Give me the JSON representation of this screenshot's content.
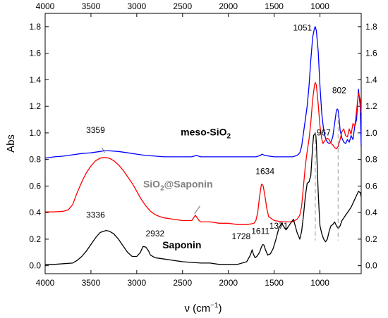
{
  "chart_data": {
    "type": "line",
    "title": "",
    "xlabel": "ν (cm",
    "xlabel_sup": "−1",
    "xlabel_end": ")",
    "ylabel": "Abs",
    "xlim": [
      4000,
      550
    ],
    "ylim": [
      -0.06,
      1.9
    ],
    "x_reversed": true,
    "grid": false,
    "x_ticks": [
      {
        "value": 4000,
        "label": "4000"
      },
      {
        "value": 3500,
        "label": "3500"
      },
      {
        "value": 3000,
        "label": "3000"
      },
      {
        "value": 2500,
        "label": "2500"
      },
      {
        "value": 2000,
        "label": "2000"
      },
      {
        "value": 1500,
        "label": "1500"
      },
      {
        "value": 1000,
        "label": "1000"
      }
    ],
    "y_ticks": [
      {
        "value": 0.0,
        "label": "0.0"
      },
      {
        "value": 0.2,
        "label": "0.2"
      },
      {
        "value": 0.4,
        "label": "0.4"
      },
      {
        "value": 0.6,
        "label": "0.6"
      },
      {
        "value": 0.8,
        "label": "0.8"
      },
      {
        "value": 1.0,
        "label": "1.0"
      },
      {
        "value": 1.2,
        "label": "1.2"
      },
      {
        "value": 1.4,
        "label": "1.4"
      },
      {
        "value": 1.6,
        "label": "1.6"
      },
      {
        "value": 1.8,
        "label": "1.8"
      }
    ],
    "series": [
      {
        "key": "meso",
        "color": "#0000ff",
        "label_parts": [
          "meso-SiO",
          "2",
          ""
        ],
        "label_color": "#000000",
        "label_pos": {
          "x": 2520,
          "y": 0.98
        },
        "x": [
          4000,
          3900,
          3800,
          3700,
          3600,
          3500,
          3400,
          3359,
          3300,
          3200,
          3100,
          3000,
          2900,
          2800,
          2700,
          2600,
          2500,
          2400,
          2350,
          2300,
          2200,
          2100,
          2000,
          1900,
          1800,
          1700,
          1650,
          1634,
          1600,
          1500,
          1400,
          1300,
          1250,
          1220,
          1200,
          1180,
          1160,
          1140,
          1120,
          1100,
          1080,
          1060,
          1051,
          1040,
          1020,
          1000,
          980,
          960,
          940,
          920,
          900,
          880,
          860,
          840,
          820,
          810,
          802,
          790,
          780,
          760,
          740,
          720,
          700,
          680,
          660,
          640,
          620,
          600,
          580,
          560,
          550
        ],
        "y": [
          0.81,
          0.82,
          0.825,
          0.835,
          0.845,
          0.85,
          0.86,
          0.865,
          0.865,
          0.86,
          0.85,
          0.84,
          0.83,
          0.825,
          0.82,
          0.82,
          0.82,
          0.82,
          0.83,
          0.82,
          0.82,
          0.82,
          0.82,
          0.82,
          0.82,
          0.82,
          0.83,
          0.84,
          0.83,
          0.82,
          0.82,
          0.82,
          0.83,
          0.85,
          0.9,
          1.0,
          1.1,
          1.2,
          1.35,
          1.55,
          1.72,
          1.79,
          1.8,
          1.77,
          1.62,
          1.35,
          1.14,
          1.02,
          0.96,
          0.93,
          0.92,
          0.93,
          0.97,
          1.07,
          1.17,
          1.18,
          1.17,
          1.1,
          1.02,
          0.96,
          0.93,
          0.92,
          0.95,
          0.93,
          0.98,
          0.95,
          1.05,
          1.1,
          1.33,
          1.2,
          0.9
        ]
      },
      {
        "key": "sio2sap",
        "color": "#ff0000",
        "label_parts": [
          "SiO",
          "2",
          "@Saponin"
        ],
        "label_color": "#808080",
        "label_pos": {
          "x": 2930,
          "y": 0.59
        },
        "x": [
          4000,
          3900,
          3800,
          3750,
          3700,
          3650,
          3600,
          3550,
          3500,
          3450,
          3400,
          3359,
          3300,
          3250,
          3200,
          3150,
          3100,
          3050,
          3000,
          2950,
          2900,
          2850,
          2800,
          2750,
          2700,
          2600,
          2500,
          2400,
          2360,
          2340,
          2320,
          2300,
          2200,
          2100,
          2000,
          1900,
          1800,
          1750,
          1720,
          1700,
          1680,
          1660,
          1640,
          1634,
          1620,
          1600,
          1580,
          1560,
          1500,
          1400,
          1300,
          1250,
          1220,
          1200,
          1180,
          1160,
          1140,
          1120,
          1100,
          1080,
          1060,
          1051,
          1040,
          1020,
          1000,
          980,
          967,
          950,
          920,
          900,
          880,
          860,
          840,
          820,
          800,
          780,
          760,
          740,
          720,
          700,
          680,
          660,
          640,
          620,
          600,
          580,
          560,
          550
        ],
        "y": [
          0.405,
          0.405,
          0.41,
          0.42,
          0.46,
          0.55,
          0.63,
          0.7,
          0.75,
          0.79,
          0.81,
          0.815,
          0.81,
          0.79,
          0.76,
          0.72,
          0.67,
          0.62,
          0.56,
          0.5,
          0.45,
          0.41,
          0.385,
          0.37,
          0.36,
          0.35,
          0.34,
          0.34,
          0.38,
          0.36,
          0.34,
          0.33,
          0.33,
          0.32,
          0.32,
          0.31,
          0.31,
          0.315,
          0.32,
          0.34,
          0.4,
          0.52,
          0.61,
          0.615,
          0.6,
          0.52,
          0.43,
          0.37,
          0.34,
          0.33,
          0.33,
          0.35,
          0.38,
          0.45,
          0.6,
          0.75,
          0.86,
          0.95,
          1.08,
          1.25,
          1.36,
          1.38,
          1.36,
          1.22,
          1.05,
          0.95,
          0.92,
          0.94,
          0.96,
          0.95,
          0.92,
          0.91,
          0.89,
          0.88,
          0.9,
          0.95,
          1.01,
          1.03,
          0.98,
          0.97,
          1.03,
          0.99,
          1.07,
          1.05,
          1.17,
          1.3,
          1.25,
          1.15
        ]
      },
      {
        "key": "saponin",
        "color": "#000000",
        "label_parts": [
          "Saponin",
          "",
          ""
        ],
        "label_color": "#000000",
        "label_pos": {
          "x": 2720,
          "y": 0.13
        },
        "x": [
          4000,
          3900,
          3800,
          3700,
          3650,
          3600,
          3550,
          3500,
          3450,
          3400,
          3336,
          3300,
          3250,
          3200,
          3150,
          3100,
          3050,
          3000,
          2960,
          2932,
          2900,
          2870,
          2850,
          2800,
          2700,
          2600,
          2500,
          2400,
          2300,
          2200,
          2100,
          2000,
          1900,
          1800,
          1760,
          1740,
          1728,
          1710,
          1690,
          1660,
          1640,
          1625,
          1611,
          1595,
          1570,
          1540,
          1510,
          1480,
          1450,
          1420,
          1400,
          1371,
          1340,
          1310,
          1290,
          1270,
          1250,
          1220,
          1200,
          1180,
          1160,
          1140,
          1120,
          1100,
          1080,
          1070,
          1060,
          1051,
          1045,
          1040,
          1030,
          1020,
          1010,
          1000,
          980,
          960,
          940,
          920,
          900,
          880,
          860,
          840,
          820,
          800,
          780,
          760,
          740,
          720,
          700,
          680,
          660,
          640,
          620,
          600,
          580,
          560,
          550
        ],
        "y": [
          0.01,
          0.01,
          0.015,
          0.02,
          0.04,
          0.07,
          0.11,
          0.16,
          0.21,
          0.25,
          0.265,
          0.26,
          0.24,
          0.2,
          0.15,
          0.1,
          0.07,
          0.07,
          0.1,
          0.145,
          0.14,
          0.11,
          0.08,
          0.06,
          0.05,
          0.04,
          0.03,
          0.025,
          0.02,
          0.02,
          0.01,
          0.01,
          0.01,
          0.03,
          0.08,
          0.12,
          0.09,
          0.06,
          0.07,
          0.1,
          0.14,
          0.16,
          0.155,
          0.12,
          0.08,
          0.09,
          0.13,
          0.2,
          0.28,
          0.32,
          0.3,
          0.27,
          0.3,
          0.33,
          0.35,
          0.3,
          0.25,
          0.2,
          0.26,
          0.38,
          0.52,
          0.62,
          0.63,
          0.68,
          0.9,
          0.98,
          0.99,
          1.0,
          0.98,
          0.93,
          0.75,
          0.56,
          0.42,
          0.3,
          0.24,
          0.2,
          0.18,
          0.2,
          0.26,
          0.3,
          0.31,
          0.33,
          0.3,
          0.28,
          0.3,
          0.34,
          0.36,
          0.38,
          0.4,
          0.42,
          0.44,
          0.47,
          0.5,
          0.53,
          0.56,
          0.55,
          0.52
        ]
      }
    ],
    "peak_labels": [
      {
        "text": "3359",
        "x": 3450,
        "y": 1.0
      },
      {
        "text": "3336",
        "x": 3450,
        "y": 0.36
      },
      {
        "text": "2932",
        "x": 2800,
        "y": 0.22
      },
      {
        "text": "1634",
        "x": 1600,
        "y": 0.69
      },
      {
        "text": "1728",
        "x": 1860,
        "y": 0.2
      },
      {
        "text": "1611",
        "x": 1650,
        "y": 0.24
      },
      {
        "text": "1371",
        "x": 1450,
        "y": 0.28
      },
      {
        "text": "1051",
        "x": 1190,
        "y": 1.77
      },
      {
        "text": "967",
        "x": 960,
        "y": 0.98
      },
      {
        "text": "802",
        "x": 790,
        "y": 1.3
      }
    ],
    "leader_lines": [
      {
        "x1": 3380,
        "y1": 0.89,
        "x2": 3350,
        "y2": 0.85
      },
      {
        "x1": 2370,
        "y1": 0.39,
        "x2": 2310,
        "y2": 0.45
      }
    ],
    "dashed_markers": [
      {
        "x": 1051,
        "y_from": 1.0,
        "y_to": 0.19
      },
      {
        "x": 802,
        "y_from": 1.15,
        "y_to": 0.19
      }
    ]
  }
}
